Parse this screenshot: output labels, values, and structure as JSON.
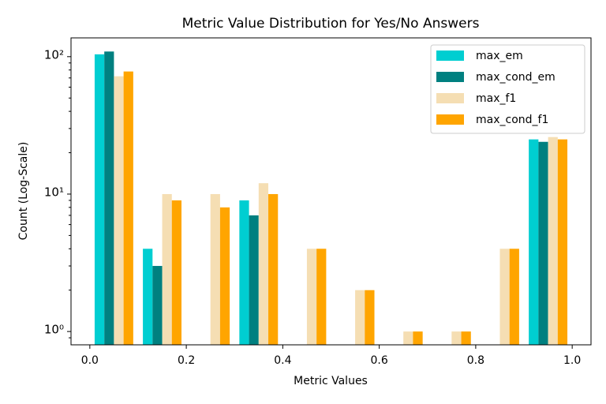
{
  "chart_data": {
    "type": "histogram",
    "title": "Metric Value Distribution for Yes/No Answers",
    "x_label": "Metric Values",
    "y_label": "Count (Log-Scale)",
    "bins": [
      0,
      0.1,
      0.2,
      0.3,
      0.4,
      0.5,
      0.6,
      0.7,
      0.8,
      0.9,
      1
    ],
    "series": [
      {
        "name": "max_em",
        "color": "#00ced1",
        "values": [
          104,
          4,
          0,
          9,
          0,
          0,
          0,
          0,
          0,
          25
        ]
      },
      {
        "name": "max_cond_em",
        "color": "#008080",
        "values": [
          109,
          3,
          0,
          7,
          0,
          0,
          0,
          0,
          0,
          24
        ]
      },
      {
        "name": "max_f1",
        "color": "#f5deb3",
        "values": [
          72,
          10,
          10,
          12,
          4,
          2,
          1,
          1,
          4,
          26
        ]
      },
      {
        "name": "max_cond_f1",
        "color": "#ffa500",
        "values": [
          78,
          9,
          8,
          10,
          4,
          2,
          1,
          1,
          4,
          25
        ]
      }
    ],
    "xlim": [
      -0.039,
      1.039
    ],
    "ylim": [
      0.8,
      137
    ],
    "log_y": true,
    "xticks": [
      {
        "value": 0,
        "label": "0.0"
      },
      0.2,
      0.4,
      0.6,
      0.8,
      {
        "value": 1,
        "label": "1.0"
      }
    ],
    "yticks": [
      {
        "value": 1,
        "label": "10⁰"
      },
      {
        "value": 10,
        "label": "10¹"
      },
      {
        "value": 100,
        "label": "10²"
      }
    ],
    "minor_yticks": [
      0.9,
      2,
      3,
      4,
      5,
      6,
      7,
      8,
      9,
      20,
      30,
      40,
      50,
      60,
      70,
      80,
      90
    ],
    "legend": "upper right"
  }
}
